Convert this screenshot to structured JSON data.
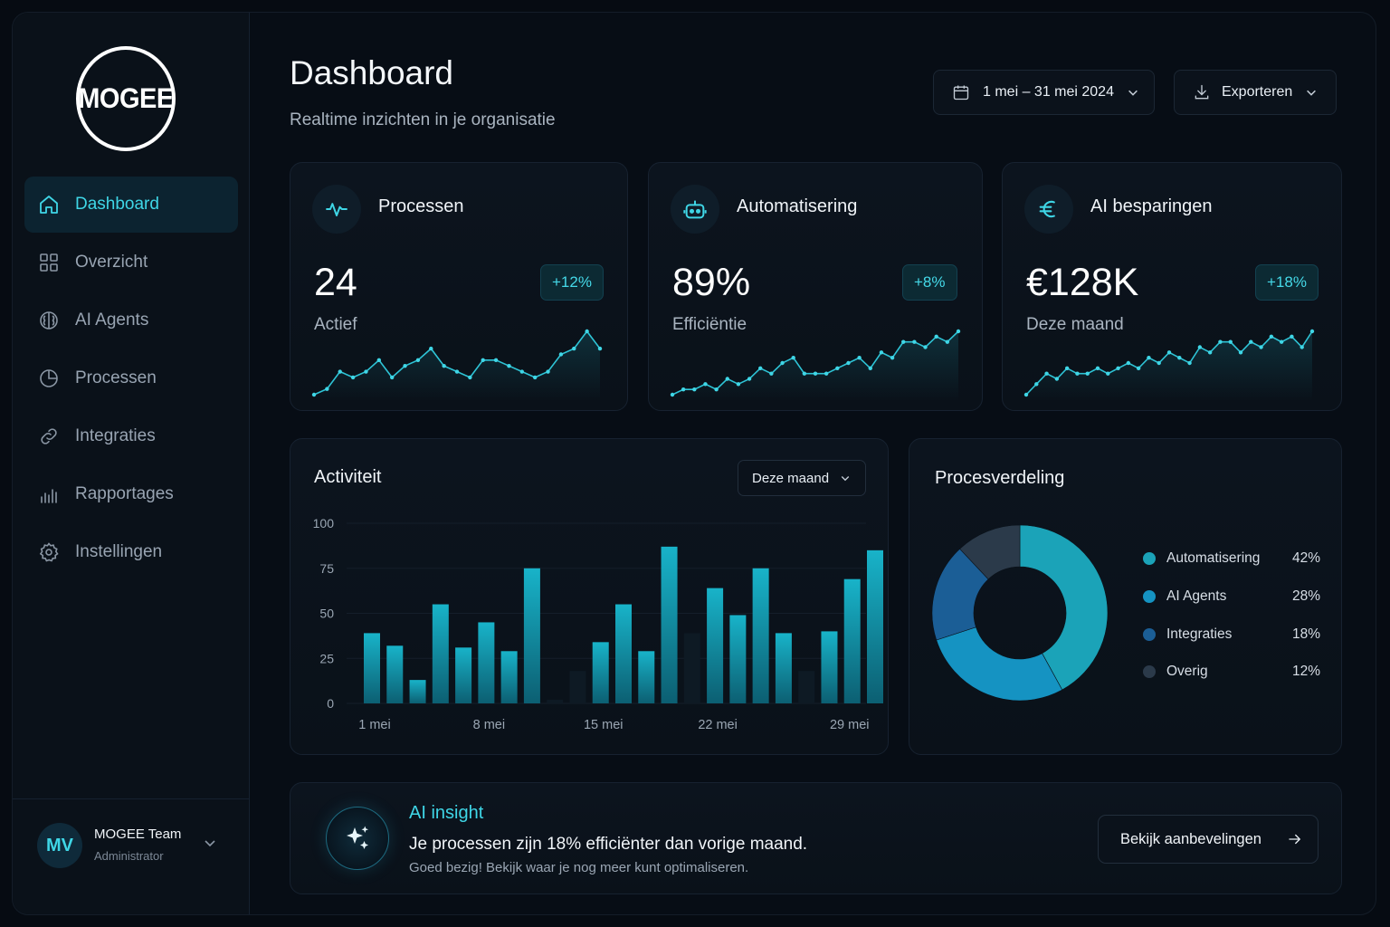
{
  "brand": {
    "logo_text": "MOGEE"
  },
  "sidebar": {
    "items": [
      {
        "label": "Dashboard",
        "icon": "home-icon",
        "active": true
      },
      {
        "label": "Overzicht",
        "icon": "grid-icon"
      },
      {
        "label": "AI Agents",
        "icon": "brain-icon"
      },
      {
        "label": "Processen",
        "icon": "pie-icon"
      },
      {
        "label": "Integraties",
        "icon": "link-icon"
      },
      {
        "label": "Rapportages",
        "icon": "bar-chart-icon"
      },
      {
        "label": "Instellingen",
        "icon": "gear-icon"
      }
    ]
  },
  "user": {
    "initials": "MV",
    "name": "MOGEE Team",
    "role": "Administrator"
  },
  "header": {
    "title": "Dashboard",
    "subtitle": "Realtime inzichten in je organisatie",
    "date_range": "1 mei – 31 mei 2024",
    "export_label": "Exporteren"
  },
  "kpis": [
    {
      "title": "Processen",
      "value": "24",
      "label": "Actief",
      "delta": "+12%",
      "icon": "activity-icon",
      "trend": [
        3,
        4,
        7,
        6,
        7,
        9,
        6,
        8,
        9,
        11,
        8,
        7,
        6,
        9,
        9,
        8,
        7,
        6,
        7,
        10,
        11,
        14,
        11
      ]
    },
    {
      "title": "Automatisering",
      "value": "89%",
      "label": "Efficiëntie",
      "delta": "+8%",
      "icon": "robot-icon",
      "trend": [
        3,
        4,
        4,
        5,
        4,
        6,
        5,
        6,
        8,
        7,
        9,
        10,
        7,
        7,
        7,
        8,
        9,
        10,
        8,
        11,
        10,
        13,
        13,
        12,
        14,
        13,
        15
      ]
    },
    {
      "title": "AI besparingen",
      "value": "€128K",
      "label": "Deze maand",
      "delta": "+18%",
      "icon": "euro-icon",
      "trend": [
        3,
        5,
        7,
        6,
        8,
        7,
        7,
        8,
        7,
        8,
        9,
        8,
        10,
        9,
        11,
        10,
        9,
        12,
        11,
        13,
        13,
        11,
        13,
        12,
        14,
        13,
        14,
        12,
        15
      ]
    }
  ],
  "activity": {
    "title": "Activiteit",
    "period": "Deze maand",
    "chart_data": {
      "type": "bar",
      "ylim": [
        0,
        100
      ],
      "yticks": [
        "100",
        "75",
        "50",
        "25",
        "0"
      ],
      "xticks": [
        "1 mei",
        "8 mei",
        "15 mei",
        "22 mei",
        "29 mei"
      ],
      "values": [
        39,
        32,
        13,
        55,
        31,
        45,
        29,
        75,
        2,
        18,
        34,
        55,
        29,
        87,
        39,
        64,
        49,
        75,
        39,
        18,
        40,
        69,
        85
      ],
      "faint": [
        false,
        false,
        false,
        false,
        false,
        false,
        false,
        false,
        true,
        true,
        false,
        false,
        false,
        false,
        true,
        false,
        false,
        false,
        false,
        true,
        false,
        false,
        false
      ]
    }
  },
  "distribution": {
    "title": "Procesverdeling",
    "chart_data": {
      "type": "pie",
      "slices": [
        {
          "name": "Automatisering",
          "value": 42,
          "pct": "42%",
          "color": "#1ba3b8"
        },
        {
          "name": "AI Agents",
          "value": 28,
          "pct": "28%",
          "color": "#1593c2"
        },
        {
          "name": "Integraties",
          "value": 18,
          "pct": "18%",
          "color": "#1b5e96"
        },
        {
          "name": "Overig",
          "value": 12,
          "pct": "12%",
          "color": "#2b3a4a"
        }
      ]
    }
  },
  "insight": {
    "kicker": "AI insight",
    "headline": "Je processen zijn 18% efficiënter dan vorige maand.",
    "detail": "Goed bezig! Bekijk waar je nog meer kunt optimaliseren.",
    "cta": "Bekijk aanbevelingen"
  },
  "colors": {
    "accent": "#3fd6e6",
    "bar": "#16a8c0",
    "background": "#070d15"
  }
}
